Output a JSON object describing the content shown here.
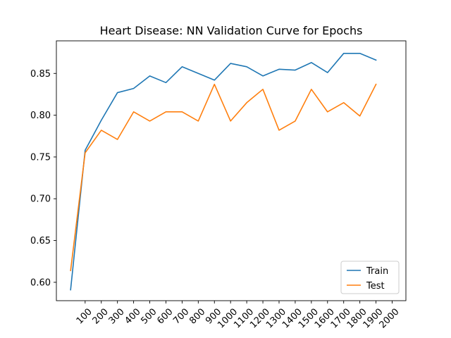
{
  "chart_data": {
    "type": "line",
    "title": "Heart Disease: NN Validation Curve for Epochs",
    "xlabel": "",
    "ylabel": "",
    "x": [
      10,
      100,
      200,
      300,
      400,
      500,
      600,
      700,
      800,
      900,
      1000,
      1100,
      1200,
      1300,
      1400,
      1500,
      1600,
      1700,
      1800,
      1900
    ],
    "xticks": [
      100,
      200,
      300,
      400,
      500,
      600,
      700,
      800,
      900,
      1000,
      1100,
      1200,
      1300,
      1400,
      1500,
      1600,
      1700,
      1800,
      1900,
      2000
    ],
    "yticks": [
      0.6,
      0.65,
      0.7,
      0.75,
      0.8,
      0.85
    ],
    "xlim": [
      -78,
      2085
    ],
    "ylim": [
      0.578,
      0.889
    ],
    "grid": false,
    "legend": "lower-right",
    "series": [
      {
        "name": "Train",
        "color": "#1f77b4",
        "values": [
          0.591,
          0.758,
          0.794,
          0.827,
          0.832,
          0.847,
          0.839,
          0.858,
          0.85,
          0.842,
          0.862,
          0.858,
          0.847,
          0.855,
          0.854,
          0.863,
          0.851,
          0.874,
          0.874,
          0.866
        ]
      },
      {
        "name": "Test",
        "color": "#ff7f0e",
        "values": [
          0.614,
          0.755,
          0.782,
          0.771,
          0.804,
          0.793,
          0.804,
          0.804,
          0.793,
          0.837,
          0.793,
          0.815,
          0.831,
          0.782,
          0.793,
          0.831,
          0.804,
          0.815,
          0.799,
          0.837
        ]
      }
    ]
  }
}
